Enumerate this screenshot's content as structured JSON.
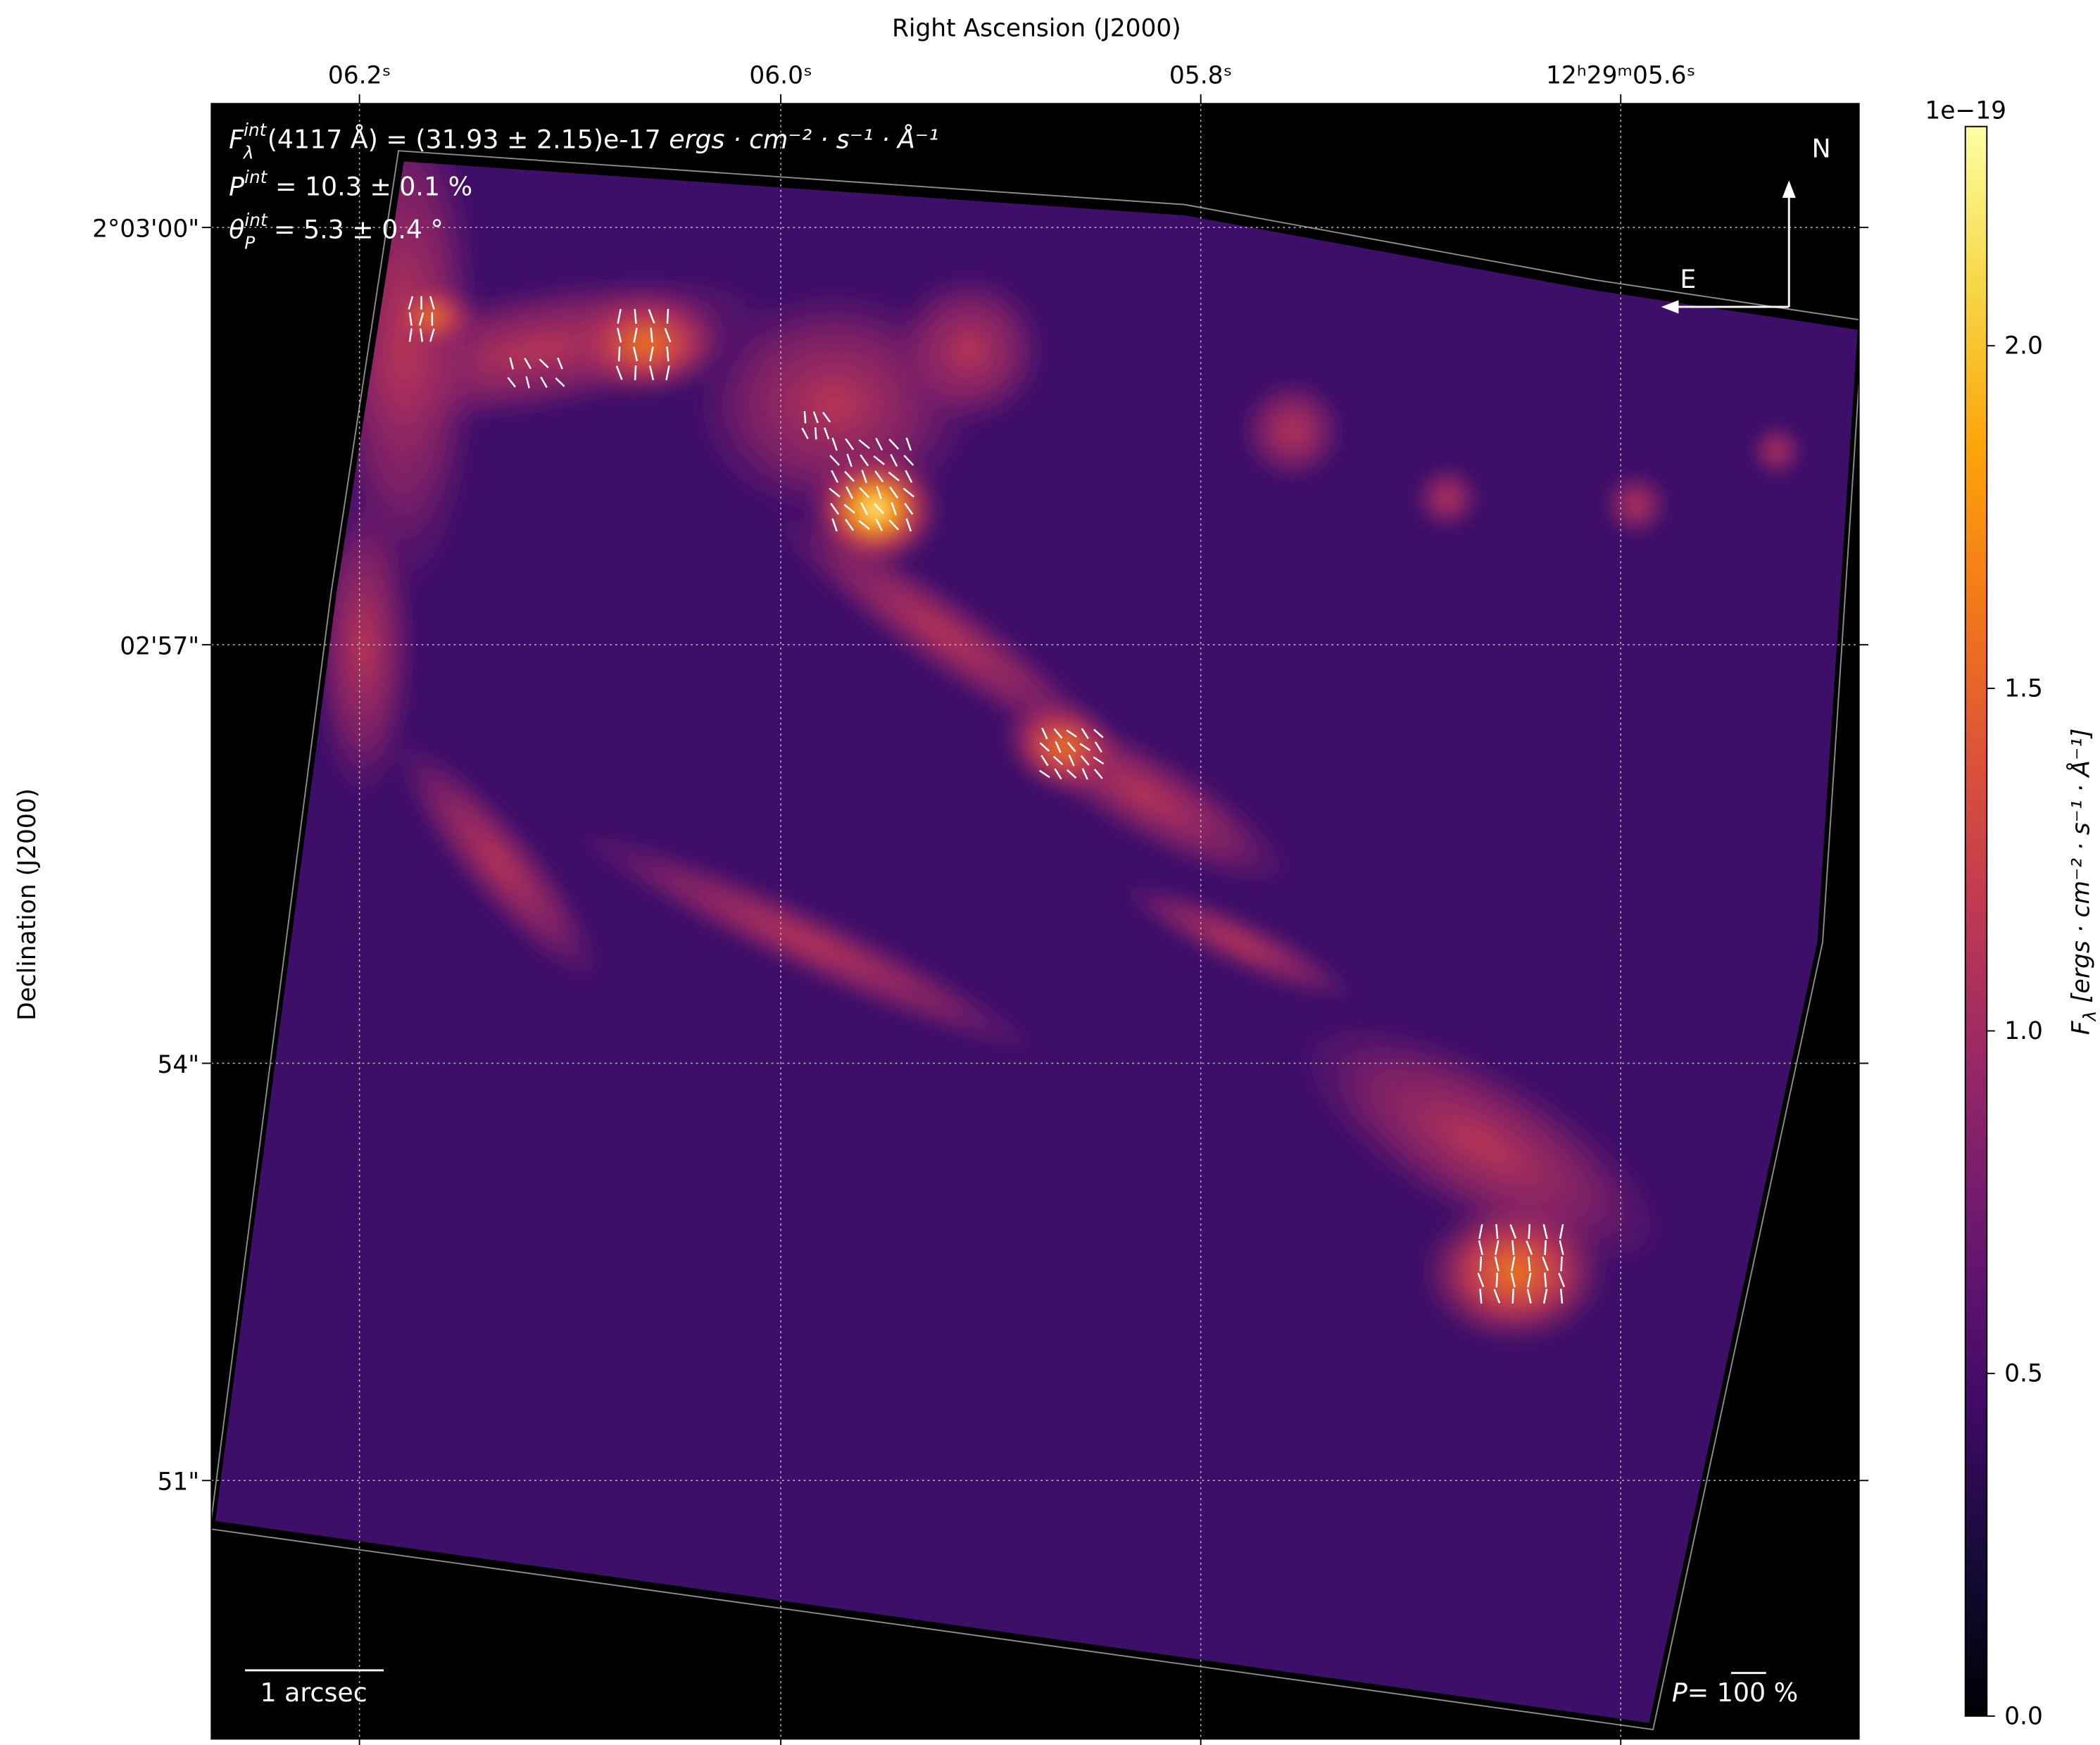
{
  "chart_data": {
    "type": "heatmap",
    "xlabel": "Right Ascension (J2000)",
    "ylabel": "Declination (J2000)",
    "x_ticks": [
      "06.2ˢ",
      "06.0ˢ",
      "05.8ˢ",
      "12ʰ29ᵐ05.6ˢ"
    ],
    "y_ticks": [
      "2°03'00\"",
      "02'57\"",
      "54\"",
      "51\""
    ],
    "grid": true,
    "colormap": "inferno",
    "colorbar": {
      "label_symbol": "F",
      "label_sub": "λ",
      "label_units": " [ergs · cm⁻² · s⁻¹ · Å⁻¹]",
      "offset_text": "1e−19",
      "range": [
        0.0,
        2.32
      ],
      "ticks": [
        "0.0",
        "0.5",
        "1.0",
        "1.5",
        "2.0"
      ],
      "tick_values": [
        0.0,
        0.5,
        1.0,
        1.5,
        2.0
      ]
    },
    "annotations": {
      "flux": {
        "symbol": "F",
        "sub": "λ",
        "sup": "int",
        "text": "(4117 Å) = (31.93 ± 2.15)e-17 ",
        "units": "ergs · cm⁻² · s⁻¹ · Å⁻¹"
      },
      "pol": {
        "symbol": "P",
        "sup": "int",
        "text": " = 10.3 ± 0.1 %"
      },
      "angle": {
        "symbol": "θ",
        "sub": "P",
        "sup": "int",
        "text": " = 5.3 ± 0.4 °"
      },
      "scale_bar": "1 arcsec",
      "pol_scale": {
        "symbol": "P",
        "text": "= 100 %"
      },
      "compass": {
        "north": "N",
        "east": "E"
      }
    },
    "colors": {
      "background": "#000000",
      "contour": "#8c8c8c",
      "vectors": "#ffffff"
    }
  }
}
